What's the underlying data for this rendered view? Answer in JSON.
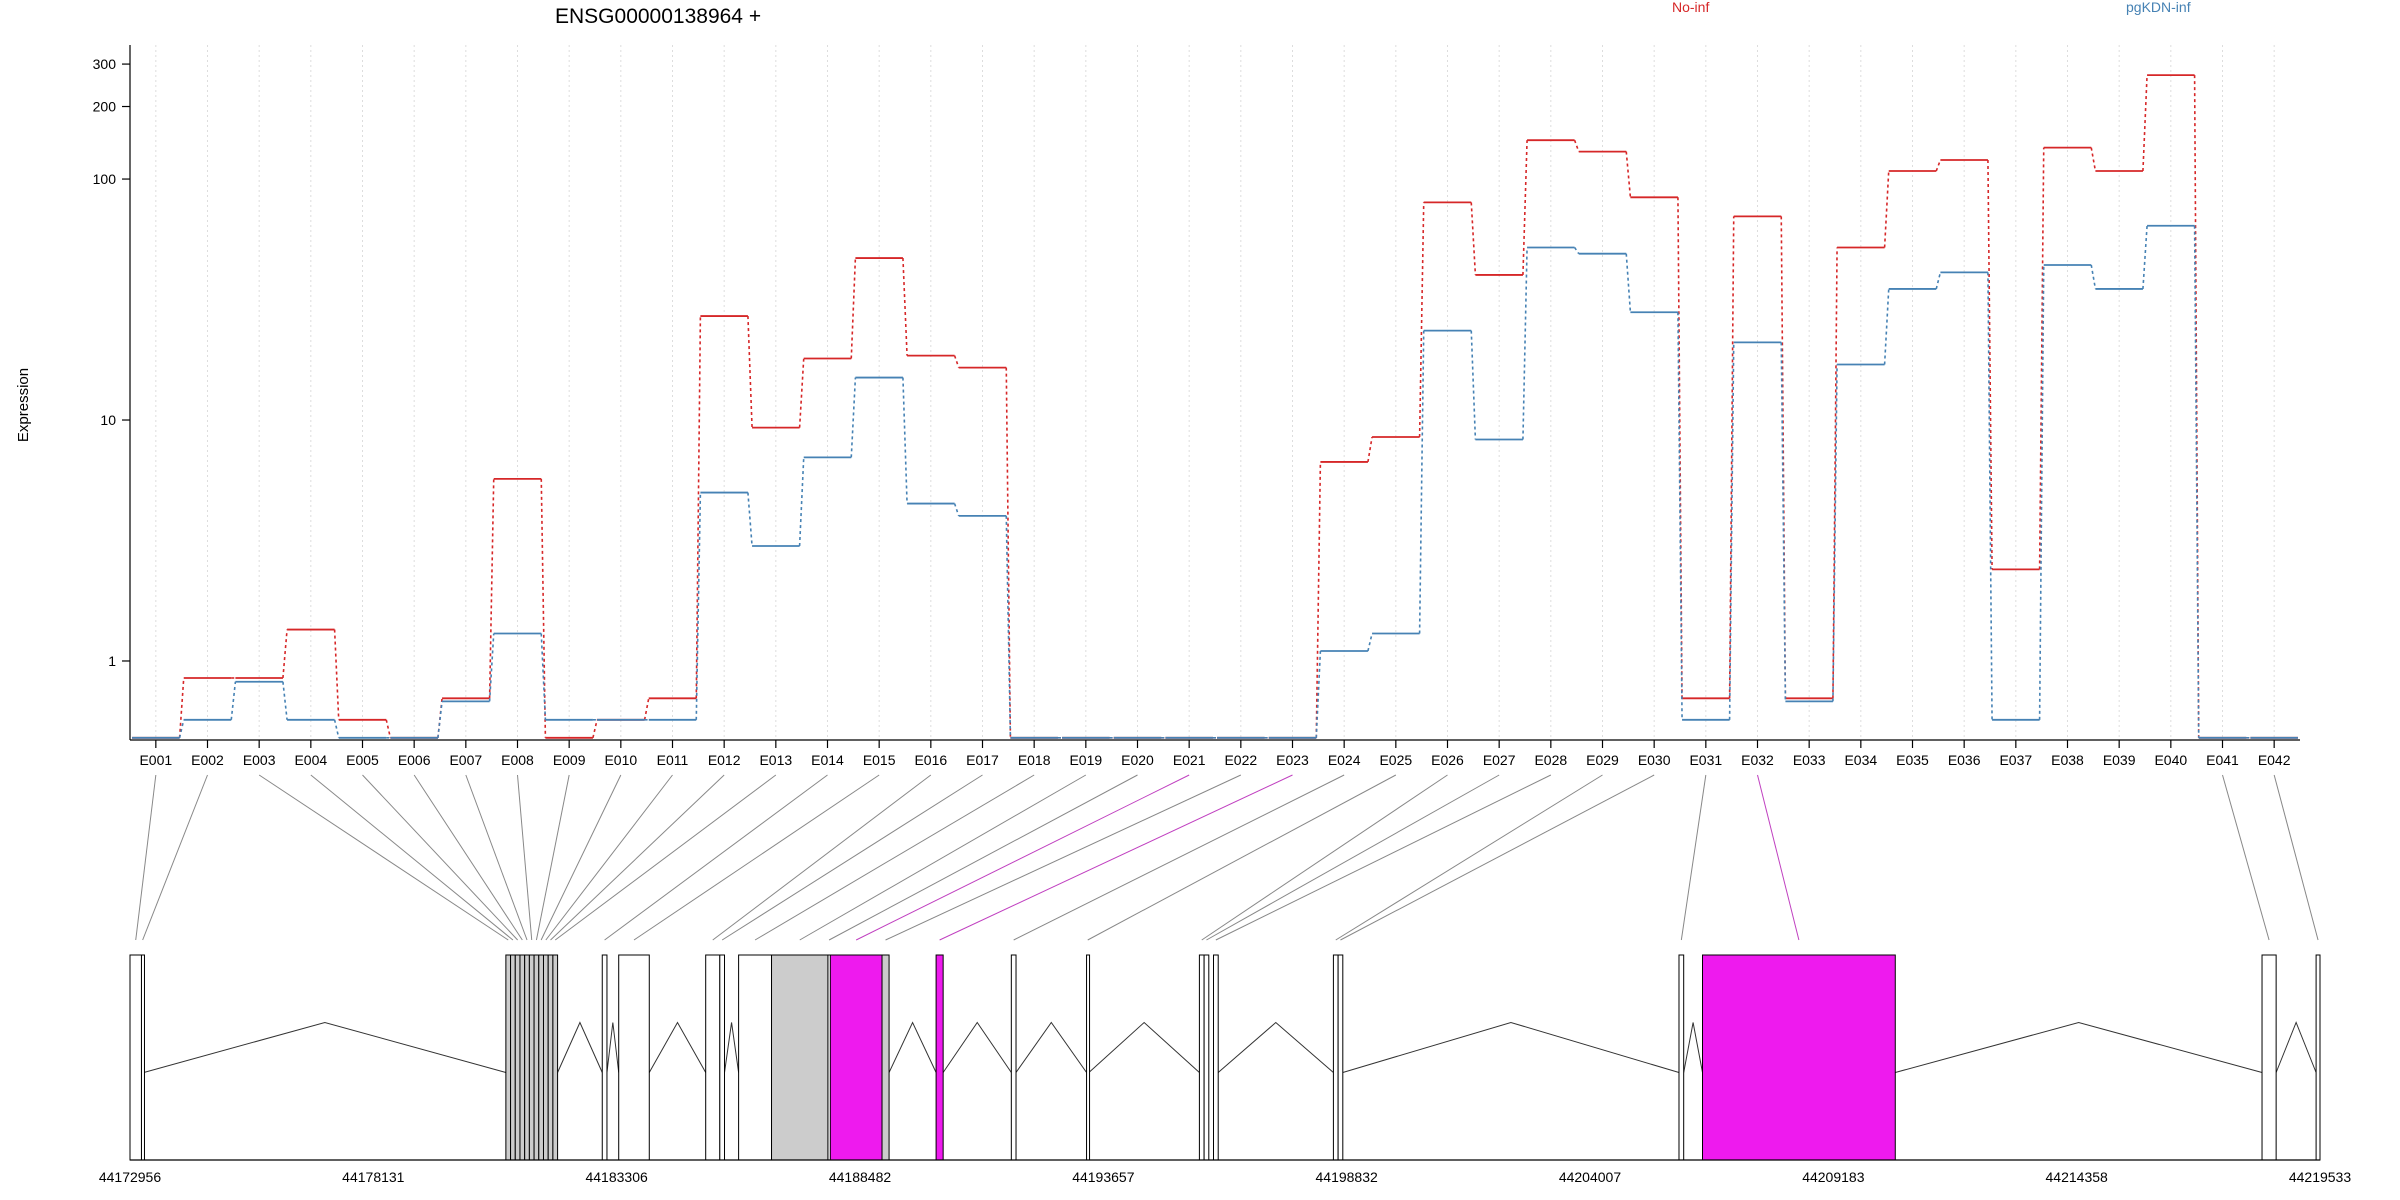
{
  "chart_data": {
    "type": "line",
    "title": "ENSG00000138964 +",
    "ylabel": "Expression",
    "y_scale": "log",
    "y_ticks": [
      1,
      10,
      100,
      200,
      300
    ],
    "y_tick_labels": [
      "1",
      "10",
      "100",
      "200",
      "300"
    ],
    "ylim": [
      0.47,
      360
    ],
    "grid": "vertical dotted lines at each exon",
    "legend_placement": "top",
    "categories": [
      "E001",
      "E002",
      "E003",
      "E004",
      "E005",
      "E006",
      "E007",
      "E008",
      "E009",
      "E010",
      "E011",
      "E012",
      "E013",
      "E014",
      "E015",
      "E016",
      "E017",
      "E018",
      "E019",
      "E020",
      "E021",
      "E022",
      "E023",
      "E024",
      "E025",
      "E026",
      "E027",
      "E028",
      "E029",
      "E030",
      "E031",
      "E032",
      "E033",
      "E034",
      "E035",
      "E036",
      "E037",
      "E038",
      "E039",
      "E040",
      "E041",
      "E042"
    ],
    "series": [
      {
        "name": "No-inf",
        "color": "#d62728",
        "values": [
          0.48,
          0.85,
          0.85,
          1.35,
          0.57,
          0.48,
          0.7,
          5.7,
          0.48,
          0.57,
          0.7,
          27,
          9.3,
          18,
          47,
          18.5,
          16.5,
          0.48,
          0.48,
          0.48,
          0.48,
          0.48,
          0.48,
          6.7,
          8.5,
          80,
          40,
          145,
          130,
          84,
          0.7,
          70,
          0.7,
          52,
          108,
          120,
          2.4,
          135,
          108,
          270,
          0.48,
          0.48
        ]
      },
      {
        "name": "pgKDN-inf",
        "color": "#4682b4",
        "values": [
          0.48,
          0.57,
          0.82,
          0.57,
          0.48,
          0.48,
          0.68,
          1.3,
          0.57,
          0.57,
          0.57,
          5.0,
          3.0,
          7.0,
          15,
          4.5,
          4.0,
          0.48,
          0.48,
          0.48,
          0.48,
          0.48,
          0.48,
          1.1,
          1.3,
          23.5,
          8.3,
          52,
          49,
          28,
          0.57,
          21,
          0.68,
          17,
          35,
          41,
          0.57,
          44,
          35,
          64,
          0.48,
          0.48
        ]
      }
    ],
    "gene_model": {
      "coord_ticks": [
        "44172956",
        "44178131",
        "44183306",
        "44188482",
        "44193657",
        "44198832",
        "44204007",
        "44209183",
        "44214358",
        "44219533"
      ],
      "coord_range": [
        44172956,
        44219533
      ],
      "highlight_color": "#ee1aee",
      "shaded_color": "#cccccc",
      "exons": [
        {
          "id": "E001",
          "start": 44172956,
          "end": 44173200,
          "fill": "none"
        },
        {
          "id": "E002",
          "start": 44173200,
          "end": 44173250,
          "fill": "none"
        },
        {
          "id": "E003",
          "start": 44180950,
          "end": 44181050,
          "fill": "grey"
        },
        {
          "id": "E004",
          "start": 44181050,
          "end": 44181150,
          "fill": "grey"
        },
        {
          "id": "E005",
          "start": 44181150,
          "end": 44181250,
          "fill": "grey"
        },
        {
          "id": "E006",
          "start": 44181250,
          "end": 44181350,
          "fill": "grey"
        },
        {
          "id": "E007",
          "start": 44181350,
          "end": 44181450,
          "fill": "grey"
        },
        {
          "id": "E008",
          "start": 44181450,
          "end": 44181550,
          "fill": "grey"
        },
        {
          "id": "E009",
          "start": 44181550,
          "end": 44181650,
          "fill": "grey"
        },
        {
          "id": "E010",
          "start": 44181650,
          "end": 44181750,
          "fill": "grey"
        },
        {
          "id": "E011",
          "start": 44181750,
          "end": 44181850,
          "fill": "grey"
        },
        {
          "id": "E012",
          "start": 44181850,
          "end": 44181950,
          "fill": "grey"
        },
        {
          "id": "E013",
          "start": 44181950,
          "end": 44182050,
          "fill": "grey"
        },
        {
          "id": "E014",
          "start": 44183000,
          "end": 44183100,
          "fill": "none"
        },
        {
          "id": "E015",
          "start": 44183350,
          "end": 44184000,
          "fill": "none"
        },
        {
          "id": "E016",
          "start": 44185200,
          "end": 44185500,
          "fill": "none"
        },
        {
          "id": "E017",
          "start": 44185500,
          "end": 44185600,
          "fill": "none"
        },
        {
          "id": "E018",
          "start": 44185900,
          "end": 44186600,
          "fill": "none"
        },
        {
          "id": "E019",
          "start": 44186600,
          "end": 44187800,
          "fill": "grey"
        },
        {
          "id": "E020",
          "start": 44187800,
          "end": 44187850,
          "fill": "none"
        },
        {
          "id": "E021",
          "start": 44187850,
          "end": 44188950,
          "fill": "magenta"
        },
        {
          "id": "E022",
          "start": 44188950,
          "end": 44189100,
          "fill": "grey"
        },
        {
          "id": "E023",
          "start": 44190100,
          "end": 44190250,
          "fill": "magenta"
        },
        {
          "id": "E024",
          "start": 44191700,
          "end": 44191800,
          "fill": "none"
        },
        {
          "id": "E025",
          "start": 44193300,
          "end": 44193350,
          "fill": "none"
        },
        {
          "id": "E026",
          "start": 44195700,
          "end": 44195800,
          "fill": "none"
        },
        {
          "id": "E027",
          "start": 44195800,
          "end": 44195900,
          "fill": "none"
        },
        {
          "id": "E028",
          "start": 44196000,
          "end": 44196100,
          "fill": "none"
        },
        {
          "id": "E029",
          "start": 44198550,
          "end": 44198650,
          "fill": "none"
        },
        {
          "id": "E030",
          "start": 44198650,
          "end": 44198750,
          "fill": "none"
        },
        {
          "id": "E031",
          "start": 44205900,
          "end": 44206000,
          "fill": "none"
        },
        {
          "id": "E032",
          "start": 44206400,
          "end": 44210500,
          "fill": "magenta"
        },
        {
          "id": "E041",
          "start": 44218300,
          "end": 44218600,
          "fill": "none"
        },
        {
          "id": "E042",
          "start": 44219450,
          "end": 44219533,
          "fill": "none"
        }
      ]
    }
  }
}
